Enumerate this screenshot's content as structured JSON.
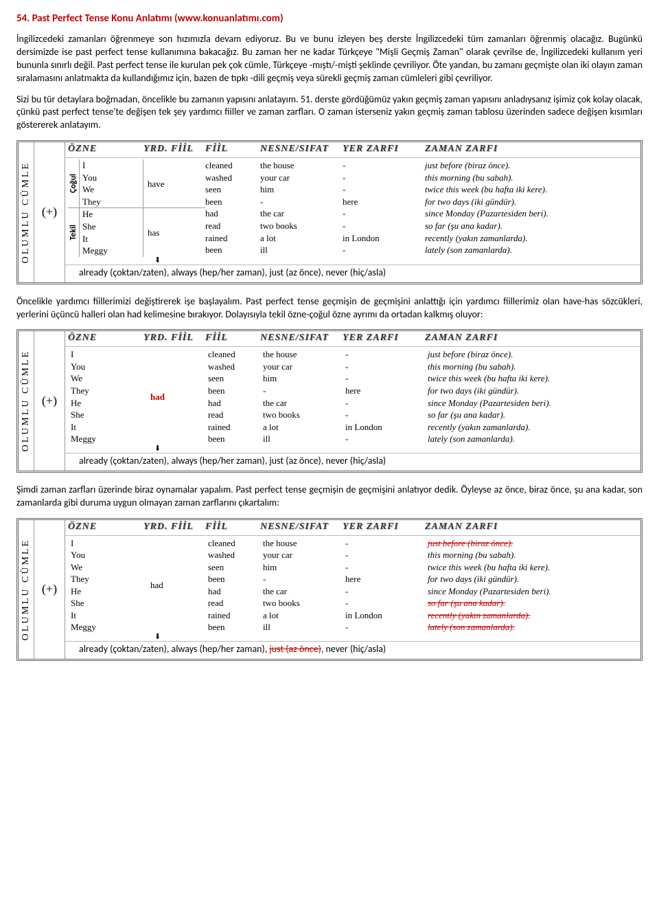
{
  "title": "54. Past Perfect Tense Konu Anlatımı (www.konuanlatımı.com)",
  "para1": "İngilizcedeki zamanları öğrenmeye son hızımızla devam ediyoruz. Bu ve bunu izleyen beş derste İngilizcedeki tüm zamanları öğrenmiş olacağız. Bugünkü dersimizde ise past perfect tense kullanımına bakacağız. Bu zaman her ne kadar Türkçeye \"Mişli Geçmiş Zaman\" olarak çevrilse de, İngilizcedeki kullanım yeri bununla sınırlı değil. Past perfect tense ile kurulan pek çok cümle, Türkçeye -mıştı/-mişti şeklinde çevriliyor. Öte yandan, bu zamanı geçmişte olan iki olayın zaman sıralamasını anlatmakta da kullandığımız için, bazen de tıpkı -dili geçmiş veya sürekli geçmiş zaman cümleleri gibi çevriliyor.",
  "para2": "Sizi bu tür detaylara boğmadan, öncelikle bu zamanın yapısını anlatayım. 51. derste gördüğümüz yakın geçmiş zaman yapısını anladıysanız işimiz çok kolay olacak, çünkü past perfect tense'te değişen tek şey yardımcı fiiller ve zaman zarfları. O zaman isterseniz yakın geçmiş zaman tablosu üzerinden sadece değişen kısımları göstererek anlatayım.",
  "para3": "Öncelikle yardımcı fiillerimizi değiştirerek işe başlayalım. Past perfect tense geçmişin de geçmişini anlattığı için yardımcı fiillerimiz olan have-has sözcükleri, yerlerini üçüncü halleri olan had kelimesine bırakıyor. Dolayısıyla tekil özne-çoğul özne ayrımı da ortadan kalkmış oluyor:",
  "para4": "Şimdi zaman zarfları üzerinde biraz oynamalar yapalım. Past perfect tense geçmişin de geçmişini anlatıyor dedik. Öyleyse az önce, biraz önce, şu ana kadar, son zamanlarda gibi duruma uygun olmayan zaman zarflarını çıkartalım:",
  "sideLabel": "OLUMLU CÜMLE",
  "plusSymbol": "(+)",
  "headers": {
    "ozne": "ÖZNE",
    "yrdfiil": "YRD. FİİL",
    "fiil": "FİİL",
    "nesne": "NESNE/SIFAT",
    "yer": "YER ZARFI",
    "zaman": "ZAMAN ZARFI"
  },
  "groupLabels": {
    "cogul": "Çoğul",
    "tekil": "Tekil"
  },
  "subjects": {
    "plural": [
      "I",
      "You",
      "We",
      "They"
    ],
    "singular": [
      "He",
      "She",
      "It",
      "Meggy"
    ]
  },
  "aux": {
    "have": "have",
    "has": "has",
    "had": "had"
  },
  "fiil": [
    "cleaned",
    "washed",
    "seen",
    "been",
    "had",
    "read",
    "rained",
    "been"
  ],
  "nesne": [
    "the house",
    "your car",
    "him",
    "-",
    "the car",
    "two books",
    "a lot",
    "ill"
  ],
  "yer": [
    "-",
    "-",
    "-",
    "here",
    "-",
    "-",
    "in London",
    "-"
  ],
  "zaman": [
    "just before (biraz önce).",
    "this morning (bu sabah).",
    "twice this week (bu hafta iki kere).",
    "for two days (iki gündür).",
    "since Monday (Pazartesiden beri).",
    "so far (şu ana kadar).",
    "recently (yakın zamanlarda).",
    "lately (son zamanlarda)."
  ],
  "zamanStrike": [
    true,
    false,
    false,
    false,
    false,
    true,
    true,
    true
  ],
  "arrowSymbol": "⬇",
  "footer": "already (çoktan/zaten), always (hep/her zaman), just (az önce), never (hiç/asla)",
  "footerParts": {
    "p1": "already (çoktan/zaten), always (hep/her zaman), ",
    "strike": "just (az önce)",
    "p2": ", never (hiç/asla)"
  }
}
